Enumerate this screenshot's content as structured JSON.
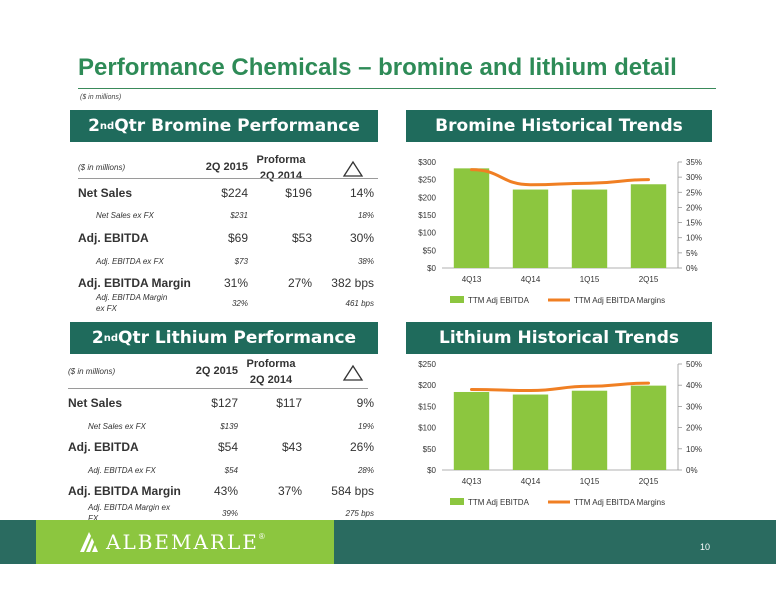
{
  "title": "Performance Chemicals – bromine and lithium detail",
  "subnote": "($ in millions)",
  "bromine_table": {
    "header_main": "2",
    "header_sup": "nd",
    "header_rest": " Qtr Bromine Performance",
    "col_units": "($ in millions)",
    "col1": "2Q 2015",
    "col2_line1": "Proforma",
    "col2_line2": "2Q 2014",
    "rows": [
      {
        "label": "Net Sales",
        "v1": "$224",
        "v2": "$196",
        "v3": "14%"
      },
      {
        "label": "Net Sales ex FX",
        "v1": "$231",
        "v2": "",
        "v3": "18%"
      },
      {
        "label": "Adj. EBITDA",
        "v1": "$69",
        "v2": "$53",
        "v3": "30%"
      },
      {
        "label": "Adj. EBITDA ex FX",
        "v1": "$73",
        "v2": "",
        "v3": "38%"
      },
      {
        "label": "Adj. EBITDA Margin",
        "v1": "31%",
        "v2": "27%",
        "v3": "382 bps"
      },
      {
        "label": "Adj. EBITDA Margin ex FX",
        "v1": "32%",
        "v2": "",
        "v3": "461 bps"
      }
    ]
  },
  "lithium_table": {
    "header_main": "2",
    "header_sup": "nd",
    "header_rest": " Qtr Lithium Performance",
    "col_units": "($ in millions)",
    "col1": "2Q 2015",
    "col2_line1": "Proforma",
    "col2_line2": "2Q 2014",
    "rows": [
      {
        "label": "Net Sales",
        "v1": "$127",
        "v2": "$117",
        "v3": "9%"
      },
      {
        "label": "Net Sales ex FX",
        "v1": "$139",
        "v2": "",
        "v3": "19%"
      },
      {
        "label": "Adj. EBITDA",
        "v1": "$54",
        "v2": "$43",
        "v3": "26%"
      },
      {
        "label": "Adj. EBITDA ex FX",
        "v1": "$54",
        "v2": "",
        "v3": "28%"
      },
      {
        "label": "Adj. EBITDA Margin",
        "v1": "43%",
        "v2": "37%",
        "v3": "584 bps"
      },
      {
        "label": "Adj. EBITDA Margin ex FX",
        "v1": "39%",
        "v2": "",
        "v3": "275 bps"
      }
    ]
  },
  "bromine_chart_title": "Bromine Historical Trends",
  "lithium_chart_title": "Lithium Historical Trends",
  "chart_data": [
    {
      "type": "bar",
      "title": "Bromine Historical Trends",
      "categories": [
        "4Q13",
        "4Q14",
        "1Q15",
        "2Q15"
      ],
      "series": [
        {
          "name": "TTM Adj EBITDA",
          "type": "bar",
          "axis": "left",
          "values": [
            282,
            222,
            222,
            237
          ]
        },
        {
          "name": "TTM Adj EBITDA Margins",
          "type": "line",
          "axis": "right",
          "values": [
            32.5,
            27.5,
            28.0,
            29.2
          ]
        }
      ],
      "y_left": {
        "min": 0,
        "max": 300,
        "ticks": [
          "$0",
          "$50",
          "$100",
          "$150",
          "$200",
          "$250",
          "$300"
        ]
      },
      "y_right": {
        "min": 0,
        "max": 35,
        "ticks": [
          "0%",
          "5%",
          "10%",
          "15%",
          "20%",
          "25%",
          "30%",
          "35%"
        ]
      },
      "legend": "bottom",
      "colors": {
        "bar": "#8cc63f",
        "line": "#f07f23"
      }
    },
    {
      "type": "bar",
      "title": "Lithium Historical Trends",
      "categories": [
        "4Q13",
        "4Q14",
        "1Q15",
        "2Q15"
      ],
      "series": [
        {
          "name": "TTM Adj EBITDA",
          "type": "bar",
          "axis": "left",
          "values": [
            184,
            178,
            187,
            199
          ]
        },
        {
          "name": "TTM Adj EBITDA Margins",
          "type": "line",
          "axis": "right",
          "values": [
            38.0,
            37.5,
            39.5,
            41.0
          ]
        }
      ],
      "y_left": {
        "min": 0,
        "max": 250,
        "ticks": [
          "$0",
          "$50",
          "$100",
          "$150",
          "$200",
          "$250"
        ]
      },
      "y_right": {
        "min": 0,
        "max": 50,
        "ticks": [
          "0%",
          "10%",
          "20%",
          "30%",
          "40%",
          "50%"
        ]
      },
      "legend": "bottom",
      "colors": {
        "bar": "#8cc63f",
        "line": "#f07f23"
      }
    }
  ],
  "footer": {
    "logo_text": "ALBEMARLE",
    "logo_mark": "®",
    "page_number": "10"
  }
}
